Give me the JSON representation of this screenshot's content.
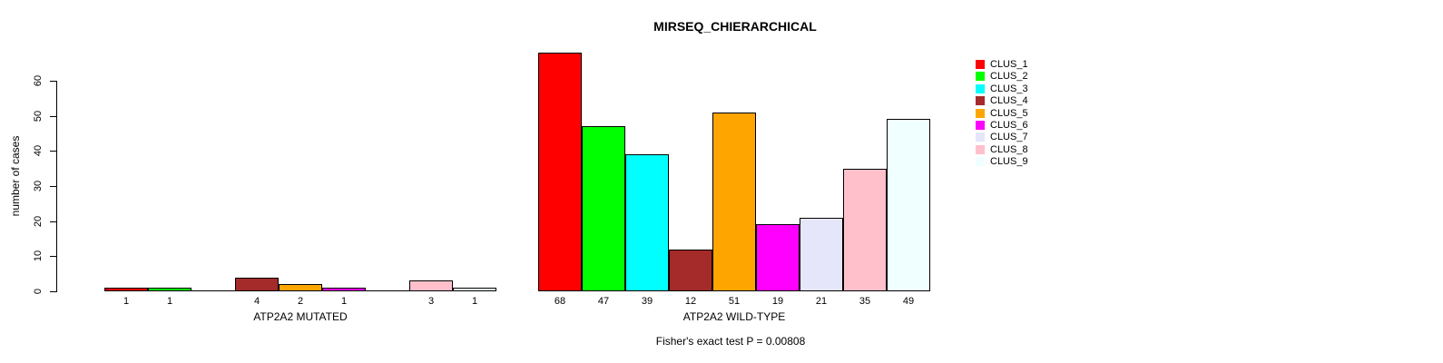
{
  "title": "MIRSEQ_CHIERARCHICAL",
  "footer": "Fisher's exact test P = 0.00808",
  "y_axis": {
    "label": "number of cases",
    "ticks": [
      0,
      10,
      20,
      30,
      40,
      50,
      60
    ]
  },
  "legend": {
    "items": [
      "CLUS_1",
      "CLUS_2",
      "CLUS_3",
      "CLUS_4",
      "CLUS_5",
      "CLUS_6",
      "CLUS_7",
      "CLUS_8",
      "CLUS_9"
    ]
  },
  "colors": {
    "clusters": [
      "#FF0000",
      "#00FF00",
      "#00FFFF",
      "#A52A2A",
      "#FFA500",
      "#FF00FF",
      "#E6E6FA",
      "#FFC0CB",
      "#F0FFFF"
    ],
    "bar_border": "#000000",
    "text": "#000000",
    "background": "#FFFFFF"
  },
  "chart_data": {
    "type": "bar",
    "title": "MIRSEQ_CHIERARCHICAL",
    "xlabel": "",
    "ylabel": "number of cases",
    "ylim": [
      0,
      68
    ],
    "yticks": [
      0,
      10,
      20,
      30,
      40,
      50,
      60
    ],
    "grid": false,
    "legend_position": "topright",
    "clusters": [
      "CLUS_1",
      "CLUS_2",
      "CLUS_3",
      "CLUS_4",
      "CLUS_5",
      "CLUS_6",
      "CLUS_7",
      "CLUS_8",
      "CLUS_9"
    ],
    "cluster_colors": [
      "#FF0000",
      "#00FF00",
      "#00FFFF",
      "#A52A2A",
      "#FFA500",
      "#FF00FF",
      "#E6E6FA",
      "#FFC0CB",
      "#F0FFFF"
    ],
    "groups": [
      {
        "label": "ATP2A2 MUTATED",
        "values": [
          1,
          1,
          0,
          4,
          2,
          1,
          0,
          3,
          1
        ]
      },
      {
        "label": "ATP2A2 WILD-TYPE",
        "values": [
          68,
          47,
          39,
          12,
          51,
          19,
          21,
          35,
          49
        ]
      }
    ],
    "value_labels_shown_for_zero": false,
    "annotation": "Fisher's exact test P = 0.00808"
  }
}
